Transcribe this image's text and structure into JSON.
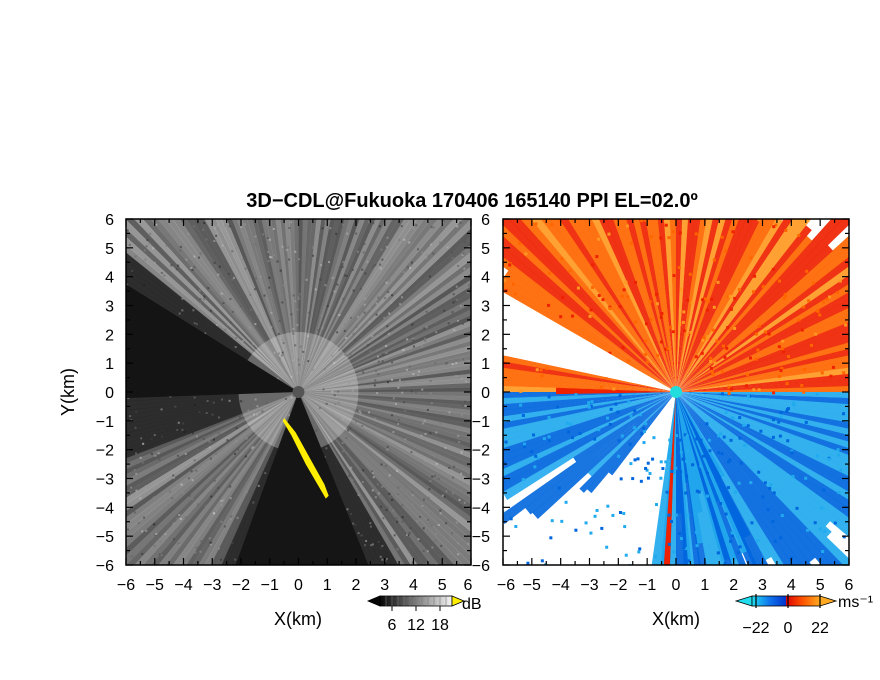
{
  "figure": {
    "title": "3D−CDL@Fukuoka 170406 165140 PPI EL=02.0º"
  },
  "colors": {
    "echo_low": "#111111",
    "echo_high": "#f0f0f0",
    "echo_flag": "#ffee00",
    "vel_negative_deep": "#0066dd",
    "vel_negative_light": "#22aaee",
    "vel_positive_red": "#ee2200",
    "vel_positive_orange": "#ff6600",
    "vel_positive_light": "#ff9922",
    "radar_site": "#22dddd"
  },
  "chart_data": [
    {
      "type": "heatmap",
      "name": "backscatter-ppi",
      "xlabel": "X(km)",
      "ylabel": "Y(km)",
      "xlim": [
        -6,
        6
      ],
      "ylim": [
        -6,
        6
      ],
      "x_ticks": [
        "−6",
        "−5",
        "−4",
        "−3",
        "−2",
        "−1",
        "0",
        "1",
        "2",
        "3",
        "4",
        "5",
        "6"
      ],
      "y_ticks": [
        "−6",
        "−5",
        "−4",
        "−3",
        "−2",
        "−1",
        "0",
        "1",
        "2",
        "3",
        "4",
        "5",
        "6"
      ],
      "colorbar": {
        "unit": "dB",
        "ticks": [
          "6",
          "12",
          "18"
        ],
        "range": [
          0,
          24
        ]
      },
      "radar_site": [
        0,
        0
      ]
    },
    {
      "type": "heatmap",
      "name": "doppler-velocity-ppi",
      "xlabel": "X(km)",
      "xlim": [
        -6,
        6
      ],
      "ylim": [
        -6,
        6
      ],
      "x_ticks": [
        "−6",
        "−5",
        "−4",
        "−3",
        "−2",
        "−1",
        "0",
        "1",
        "2",
        "3",
        "4",
        "5",
        "6"
      ],
      "y_ticks": [
        "−6",
        "−5",
        "−4",
        "−3",
        "−2",
        "−1",
        "0",
        "1",
        "2",
        "3",
        "4",
        "5",
        "6"
      ],
      "colorbar": {
        "unit": "ms⁻¹",
        "ticks": [
          "−22",
          "0",
          "22"
        ],
        "range": [
          -33,
          33
        ]
      },
      "radar_site": [
        0,
        0
      ]
    }
  ]
}
